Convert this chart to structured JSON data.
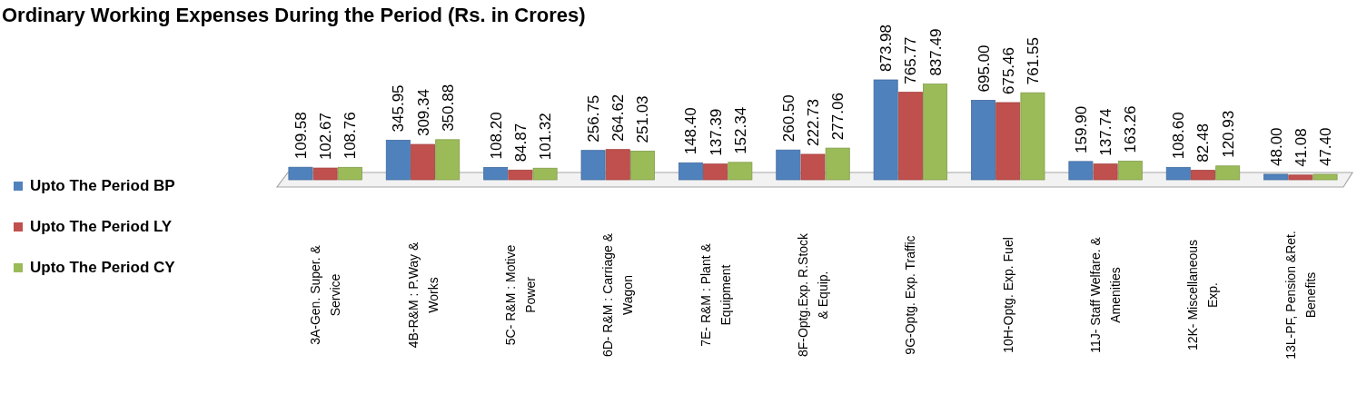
{
  "chart_data": {
    "type": "bar",
    "title": "Ordinary Working Expenses During the Period (Rs. in Crores)",
    "categories": [
      "3A-Gen. Super. & Service",
      "4B-R&M : P.Way & Works",
      "5C- R&M : Motive Power",
      "6D- R&M : Carriage & Wagon",
      "7E- R&M : Plant & Equipment",
      "8F-Optg.Exp. R.Stock & Equip.",
      "9G-Optg. Exp. Traffic",
      "10H-Optg. Exp. Fuel",
      "11J- Staff Welfare. & Amenities",
      "12K- Miscellaneous Exp.",
      "13L-PF, Pension &Ret. Benefits"
    ],
    "series": [
      {
        "name": "Upto The Period BP",
        "color": "#4f81bd",
        "values": [
          109.58,
          345.95,
          108.2,
          256.75,
          148.4,
          260.5,
          873.98,
          695.0,
          159.9,
          108.6,
          48.0
        ],
        "value_labels": [
          "109.58",
          "345.95",
          "108.20",
          "256.75",
          "148.40",
          "260.50",
          "873.98",
          "695.00",
          "159.90",
          "108.60",
          "48.00"
        ]
      },
      {
        "name": "Upto The Period LY",
        "color": "#c0504d",
        "values": [
          102.67,
          309.34,
          84.87,
          264.62,
          137.39,
          222.73,
          765.77,
          675.46,
          137.74,
          82.48,
          41.08
        ],
        "value_labels": [
          "102.67",
          "309.34",
          "84.87",
          "264.62",
          "137.39",
          "222.73",
          "765.77",
          "675.46",
          "137.74",
          "82.48",
          "41.08"
        ]
      },
      {
        "name": "Upto The Period CY",
        "color": "#9bbb59",
        "values": [
          108.76,
          350.88,
          101.32,
          251.03,
          152.34,
          277.06,
          837.49,
          761.55,
          163.26,
          120.93,
          47.4
        ],
        "value_labels": [
          "108.76",
          "350.88",
          "101.32",
          "251.03",
          "152.34",
          "277.06",
          "837.49",
          "761.55",
          "163.26",
          "120.93",
          "47.40"
        ]
      }
    ],
    "legend": "left"
  }
}
